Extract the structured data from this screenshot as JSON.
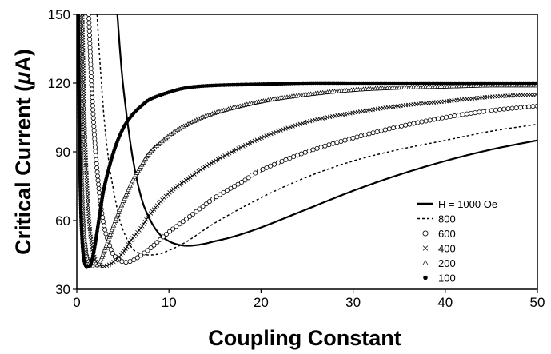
{
  "chart_data": {
    "type": "scatter",
    "title": "",
    "xlabel": "Coupling Constant",
    "ylabel_main": "Critical Current (",
    "ylabel_mu": "μ",
    "ylabel_tail": "A)",
    "xlim": [
      0,
      50
    ],
    "ylim": [
      30,
      150
    ],
    "xticks": [
      0,
      10,
      20,
      30,
      40,
      50
    ],
    "yticks": [
      30,
      60,
      90,
      120,
      150
    ],
    "grid": false,
    "legend_placement": "bottom-right",
    "series": [
      {
        "name": "H = 1000 Oe",
        "style": "solid-line",
        "x": [
          4.4,
          5,
          6,
          7,
          8,
          9,
          10,
          11,
          12,
          13,
          14,
          15,
          17,
          20,
          25,
          30,
          35,
          40,
          45,
          50
        ],
        "y": [
          150,
          120,
          89,
          70,
          60,
          54,
          51,
          49.5,
          49,
          49.3,
          50,
          51,
          53,
          57,
          65,
          73,
          80,
          86,
          91,
          95
        ]
      },
      {
        "name": "800",
        "style": "dashed-line",
        "x": [
          2.2,
          2.5,
          3,
          3.5,
          4,
          4.5,
          5,
          6,
          7,
          8,
          9,
          10,
          12,
          15,
          20,
          25,
          30,
          35,
          40,
          45,
          50
        ],
        "y": [
          150,
          130,
          103,
          85,
          73,
          63,
          56,
          48,
          45.5,
          45,
          45.5,
          47,
          51,
          59,
          70,
          79,
          86,
          91,
          95,
          99,
          102
        ]
      },
      {
        "name": "600",
        "style": "circle",
        "x": [
          1.3,
          1.6,
          2,
          2.5,
          3,
          3.5,
          4,
          5,
          6,
          7,
          8,
          10,
          12,
          15,
          18,
          20,
          25,
          30,
          35,
          40,
          45,
          50
        ],
        "y": [
          150,
          120,
          92,
          70,
          57,
          50,
          45,
          42,
          42.5,
          45,
          48,
          55,
          61,
          70,
          77,
          82,
          90,
          96,
          101,
          105,
          108,
          110
        ]
      },
      {
        "name": "400",
        "style": "x",
        "x": [
          0.6,
          0.8,
          1,
          1.3,
          1.6,
          2,
          2.5,
          3,
          4,
          5,
          6,
          7,
          8,
          10,
          12,
          15,
          20,
          25,
          30,
          35,
          40,
          45,
          50
        ],
        "y": [
          150,
          110,
          85,
          62,
          50,
          43,
          40.5,
          40,
          42,
          46,
          52,
          57,
          63,
          72,
          78,
          86,
          96,
          103,
          107,
          110,
          112,
          114,
          115
        ]
      },
      {
        "name": "200",
        "style": "triangle",
        "x": [
          0.3,
          0.4,
          0.5,
          0.7,
          1,
          1.3,
          1.6,
          2,
          2.5,
          3,
          4,
          5,
          6,
          7,
          8,
          10,
          12,
          15,
          20,
          25,
          30,
          35,
          40,
          45,
          50
        ],
        "y": [
          150,
          110,
          85,
          60,
          47,
          42,
          40.5,
          40,
          42,
          47,
          58,
          68,
          77,
          84,
          90,
          97,
          102,
          107,
          112,
          115,
          117,
          118,
          118.5,
          119,
          119
        ]
      },
      {
        "name": "100",
        "style": "dot",
        "x": [
          0.15,
          0.25,
          0.35,
          0.5,
          0.7,
          1,
          1.3,
          1.6,
          2,
          2.5,
          3,
          4,
          5,
          6,
          7,
          8,
          10,
          12,
          15,
          20,
          25,
          30,
          35,
          40,
          45,
          50
        ],
        "y": [
          150,
          110,
          80,
          58,
          45,
          40,
          40,
          42,
          50,
          63,
          75,
          90,
          100,
          106,
          110,
          113,
          116,
          118,
          119,
          119.5,
          120,
          120,
          120,
          120,
          120,
          120
        ]
      }
    ]
  }
}
